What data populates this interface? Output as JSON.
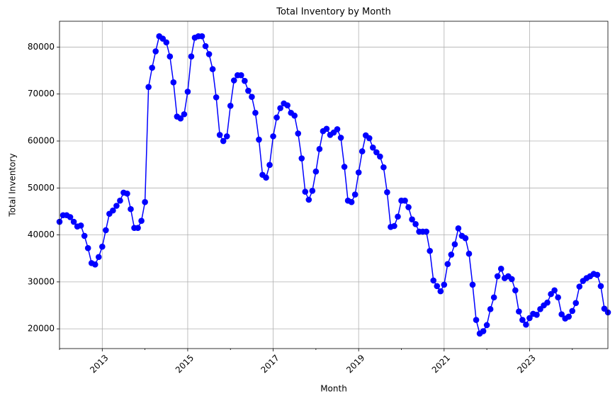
{
  "chart_data": {
    "type": "line",
    "title": "Total Inventory by Month",
    "xlabel": "Month",
    "ylabel": "Total Inventory",
    "x": [
      "2012-01",
      "2012-02",
      "2012-03",
      "2012-04",
      "2012-05",
      "2012-06",
      "2012-07",
      "2012-08",
      "2012-09",
      "2012-10",
      "2012-11",
      "2012-12",
      "2013-01",
      "2013-02",
      "2013-03",
      "2013-04",
      "2013-05",
      "2013-06",
      "2013-07",
      "2013-08",
      "2013-09",
      "2013-10",
      "2013-11",
      "2013-12",
      "2014-01",
      "2014-02",
      "2014-03",
      "2014-04",
      "2014-05",
      "2014-06",
      "2014-07",
      "2014-08",
      "2014-09",
      "2014-10",
      "2014-11",
      "2014-12",
      "2015-01",
      "2015-02",
      "2015-03",
      "2015-04",
      "2015-05",
      "2015-06",
      "2015-07",
      "2015-08",
      "2015-09",
      "2015-10",
      "2015-11",
      "2015-12",
      "2016-01",
      "2016-02",
      "2016-03",
      "2016-04",
      "2016-05",
      "2016-06",
      "2016-07",
      "2016-08",
      "2016-09",
      "2016-10",
      "2016-11",
      "2016-12",
      "2017-01",
      "2017-02",
      "2017-03",
      "2017-04",
      "2017-05",
      "2017-06",
      "2017-07",
      "2017-08",
      "2017-09",
      "2017-10",
      "2017-11",
      "2017-12",
      "2018-01",
      "2018-02",
      "2018-03",
      "2018-04",
      "2018-05",
      "2018-06",
      "2018-07",
      "2018-08",
      "2018-09",
      "2018-10",
      "2018-11",
      "2018-12",
      "2019-01",
      "2019-02",
      "2019-03",
      "2019-04",
      "2019-05",
      "2019-06",
      "2019-07",
      "2019-08",
      "2019-09",
      "2019-10",
      "2019-11",
      "2019-12",
      "2020-01",
      "2020-02",
      "2020-03",
      "2020-04",
      "2020-05",
      "2020-06",
      "2020-07",
      "2020-08",
      "2020-09",
      "2020-10",
      "2020-11",
      "2020-12",
      "2021-01",
      "2021-02",
      "2021-03",
      "2021-04",
      "2021-05",
      "2021-06",
      "2021-07",
      "2021-08",
      "2021-09",
      "2021-10",
      "2021-11",
      "2021-12",
      "2022-01",
      "2022-02",
      "2022-03",
      "2022-04",
      "2022-05",
      "2022-06",
      "2022-07",
      "2022-08",
      "2022-09",
      "2022-10",
      "2022-11",
      "2022-12",
      "2023-01",
      "2023-02",
      "2023-03",
      "2023-04",
      "2023-05",
      "2023-06",
      "2023-07",
      "2023-08",
      "2023-09",
      "2023-10",
      "2023-11",
      "2023-12",
      "2024-01",
      "2024-02",
      "2024-03",
      "2024-04",
      "2024-05",
      "2024-06",
      "2024-07",
      "2024-08",
      "2024-09",
      "2024-10",
      "2024-11"
    ],
    "series": [
      {
        "name": "Total Inventory",
        "color": "#0000ff",
        "values": [
          42800,
          44200,
          44200,
          43800,
          42800,
          41800,
          42000,
          39800,
          37200,
          34000,
          33700,
          35300,
          37500,
          41000,
          44500,
          45200,
          46200,
          47300,
          49000,
          48800,
          45500,
          41500,
          41500,
          43000,
          47000,
          71500,
          75600,
          79100,
          82300,
          81800,
          81000,
          78000,
          72500,
          65200,
          64800,
          65700,
          70500,
          78000,
          82000,
          82300,
          82300,
          80200,
          78500,
          75300,
          69300,
          61300,
          60000,
          61000,
          67500,
          72900,
          74000,
          74000,
          72800,
          70700,
          69400,
          66000,
          60300,
          52800,
          52200,
          54900,
          61000,
          65000,
          67000,
          68000,
          67600,
          66000,
          65400,
          61600,
          56300,
          49200,
          47500,
          49400,
          53500,
          58300,
          62100,
          62600,
          61300,
          61800,
          62500,
          60700,
          54500,
          47300,
          47000,
          48600,
          53300,
          57800,
          61200,
          60600,
          58600,
          57600,
          56700,
          54400,
          49100,
          41700,
          41900,
          43900,
          47300,
          47300,
          45900,
          43300,
          42300,
          40700,
          40700,
          40700,
          36600,
          30300,
          29100,
          28000,
          29400,
          33800,
          35800,
          38000,
          41400,
          39800,
          39300,
          36000,
          29400,
          21900,
          19000,
          19500,
          20800,
          24200,
          26700,
          31200,
          32800,
          30800,
          31200,
          30600,
          28200,
          23700,
          21900,
          20900,
          22300,
          23200,
          23000,
          24200,
          25000,
          25600,
          27400,
          28200,
          26700,
          23100,
          22200,
          22600,
          23800,
          25500,
          29000,
          30200,
          30800,
          31200,
          31700,
          31500,
          29100,
          24300,
          23500
        ]
      }
    ],
    "xlim": [
      "2012-01",
      "2024-11"
    ],
    "xticks": [
      {
        "value": "2013-01",
        "label": "2013"
      },
      {
        "value": "2015-01",
        "label": "2015"
      },
      {
        "value": "2017-01",
        "label": "2017"
      },
      {
        "value": "2019-01",
        "label": "2019"
      },
      {
        "value": "2021-01",
        "label": "2021"
      },
      {
        "value": "2023-01",
        "label": "2023"
      }
    ],
    "xminorticks": [
      "2012-01",
      "2014-01",
      "2016-01",
      "2018-01",
      "2020-01",
      "2022-01",
      "2024-01"
    ],
    "ylim": [
      15800,
      85500
    ],
    "yticks": [
      20000,
      30000,
      40000,
      50000,
      60000,
      70000,
      80000
    ],
    "grid": true
  }
}
